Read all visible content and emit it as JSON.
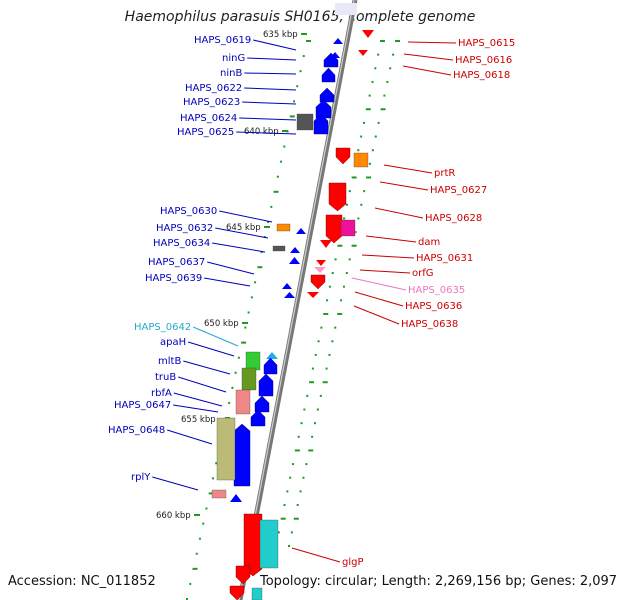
{
  "title": "Haemophilus parasuis SH0165, complete genome",
  "footer": {
    "accession": "Accession: NC_011852",
    "topology": "Topology: circular; Length: 2,269,156 bp; Genes: 2,097"
  },
  "colors": {
    "backbone": "#777777",
    "left_label": "#0000bb",
    "right_label": "#cc0000",
    "pink_label": "#ee77bb",
    "cyan_label": "#22aacc",
    "tick": "#229922",
    "kbp": "#222222"
  },
  "scale_labels": [
    "635 kbp",
    "640 kbp",
    "645 kbp",
    "650 kbp",
    "655 kbp",
    "660 kbp"
  ],
  "left_labels": [
    "HAPS_0619",
    "ninG",
    "ninB",
    "HAPS_0622",
    "HAPS_0623",
    "HAPS_0624",
    "HAPS_0625",
    "HAPS_0630",
    "HAPS_0632",
    "HAPS_0634",
    "HAPS_0637",
    "HAPS_0639",
    "HAPS_0642",
    "apaH",
    "mltB",
    "truB",
    "rbfA",
    "HAPS_0647",
    "HAPS_0648",
    "rplY"
  ],
  "right_labels": [
    "HAPS_0615",
    "HAPS_0616",
    "HAPS_0618",
    "prtR",
    "HAPS_0627",
    "HAPS_0628",
    "dam",
    "HAPS_0631",
    "orfG",
    "HAPS_0635",
    "HAPS_0636",
    "HAPS_0638",
    "glgP"
  ]
}
